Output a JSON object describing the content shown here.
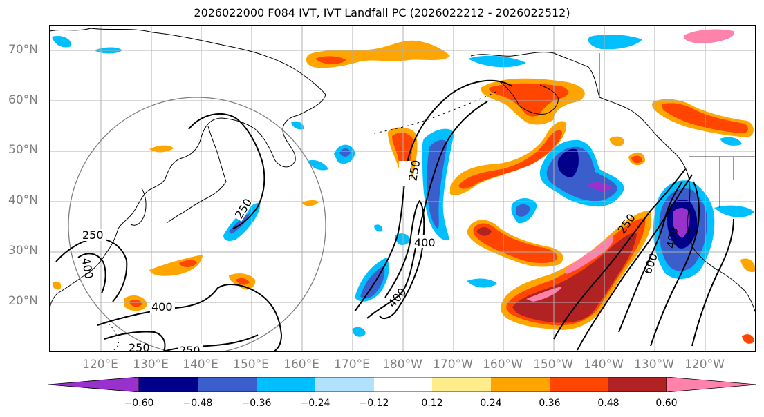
{
  "map": {
    "title": "2026022000 F084 IVT, IVT Landfall PC (2026022212 - 2026022512)",
    "lat_labels": [
      "70°N",
      "60°N",
      "50°N",
      "40°N",
      "30°N",
      "20°N"
    ],
    "lon_labels": [
      "120°E",
      "130°E",
      "140°E",
      "150°E",
      "160°E",
      "170°E",
      "180°W",
      "170°W",
      "160°W",
      "150°W",
      "140°W",
      "130°W",
      "120°W"
    ],
    "contour_labels": [
      {
        "text": "250"
      },
      {
        "text": "400"
      },
      {
        "text": "250"
      },
      {
        "text": "400"
      },
      {
        "text": "250"
      },
      {
        "text": "250"
      },
      {
        "text": "250"
      },
      {
        "text": "400"
      },
      {
        "text": "400"
      },
      {
        "text": "250"
      },
      {
        "text": "600"
      },
      {
        "text": "400"
      }
    ],
    "colorbar": {
      "ticks": [
        "−0.60",
        "−0.48",
        "−0.36",
        "−0.24",
        "−0.12",
        "0.12",
        "0.24",
        "0.36",
        "0.48",
        "0.60"
      ],
      "colors": [
        "#9932cc",
        "#00008b",
        "#3a5fcd",
        "#00bfff",
        "#b0e2ff",
        "#ffffff",
        "#ffec8b",
        "#ffa500",
        "#ff4500",
        "#b22222",
        "#ff82ab",
        "#ff82ab"
      ]
    }
  }
}
